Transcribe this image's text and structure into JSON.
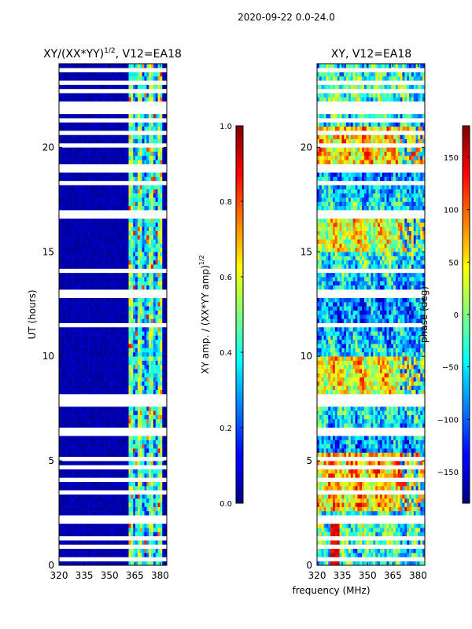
{
  "figure": {
    "suptitle": "2020-09-22 0.0-24.0",
    "xlabel_shared": "frequency (MHz)"
  },
  "chart_data": [
    {
      "type": "heatmap",
      "title": "XY/(XX*YY)^1/2, V12=EA18",
      "title_main": "XY/(XX*YY)",
      "title_exp": "1/2",
      "title_tail": ", V12=EA18",
      "ylabel": "UT (hours)",
      "xlim": [
        320,
        384
      ],
      "ylim": [
        0,
        24
      ],
      "xticks": [
        "320",
        "335",
        "350",
        "365",
        "380"
      ],
      "xtick_values": [
        320,
        335,
        350,
        365,
        380
      ],
      "yticks": [
        "0",
        "5",
        "10",
        "15",
        "20"
      ],
      "ytick_values": [
        0,
        5,
        10,
        15,
        20
      ],
      "colormap": "jet",
      "value_range": [
        0.0,
        1.0
      ],
      "description_band_MHz": [
        361,
        381
      ],
      "flagged_hours": [
        2.1,
        2.3,
        7.6,
        7.9,
        8.2,
        11.5,
        12.9,
        13.2,
        16.6,
        16.8,
        18.8,
        21.2,
        21.6,
        22.1,
        23.0
      ]
    },
    {
      "type": "heatmap",
      "title": "XY, V12=EA18",
      "xlim": [
        320,
        384
      ],
      "ylim": [
        0,
        24
      ],
      "xticks": [
        "320",
        "335",
        "350",
        "365",
        "380"
      ],
      "xtick_values": [
        320,
        335,
        350,
        365,
        380
      ],
      "yticks": [
        "0",
        "5",
        "10",
        "15",
        "20"
      ],
      "ytick_values": [
        0,
        5,
        10,
        15,
        20
      ],
      "colormap": "jet",
      "value_range": [
        -180,
        180
      ]
    }
  ],
  "colorbars": [
    {
      "label": "XY amp. / (XX*YY amp)^1/2",
      "label_main": "XY amp. / (XX*YY amp)",
      "label_exp": "1/2",
      "range": [
        0.0,
        1.0
      ],
      "ticks": [
        "0.0",
        "0.2",
        "0.4",
        "0.6",
        "0.8",
        "1.0"
      ],
      "tick_values": [
        0.0,
        0.2,
        0.4,
        0.6,
        0.8,
        1.0
      ]
    },
    {
      "label": "phase (deg)",
      "range": [
        -180,
        180
      ],
      "ticks": [
        "−150",
        "−100",
        "−50",
        "0",
        "50",
        "100",
        "150"
      ],
      "tick_values": [
        -150,
        -100,
        -50,
        0,
        50,
        100,
        150
      ]
    }
  ],
  "colors": {
    "jet_low": "#00007f",
    "jet_high": "#7f0000",
    "flag": "#ffffff"
  }
}
